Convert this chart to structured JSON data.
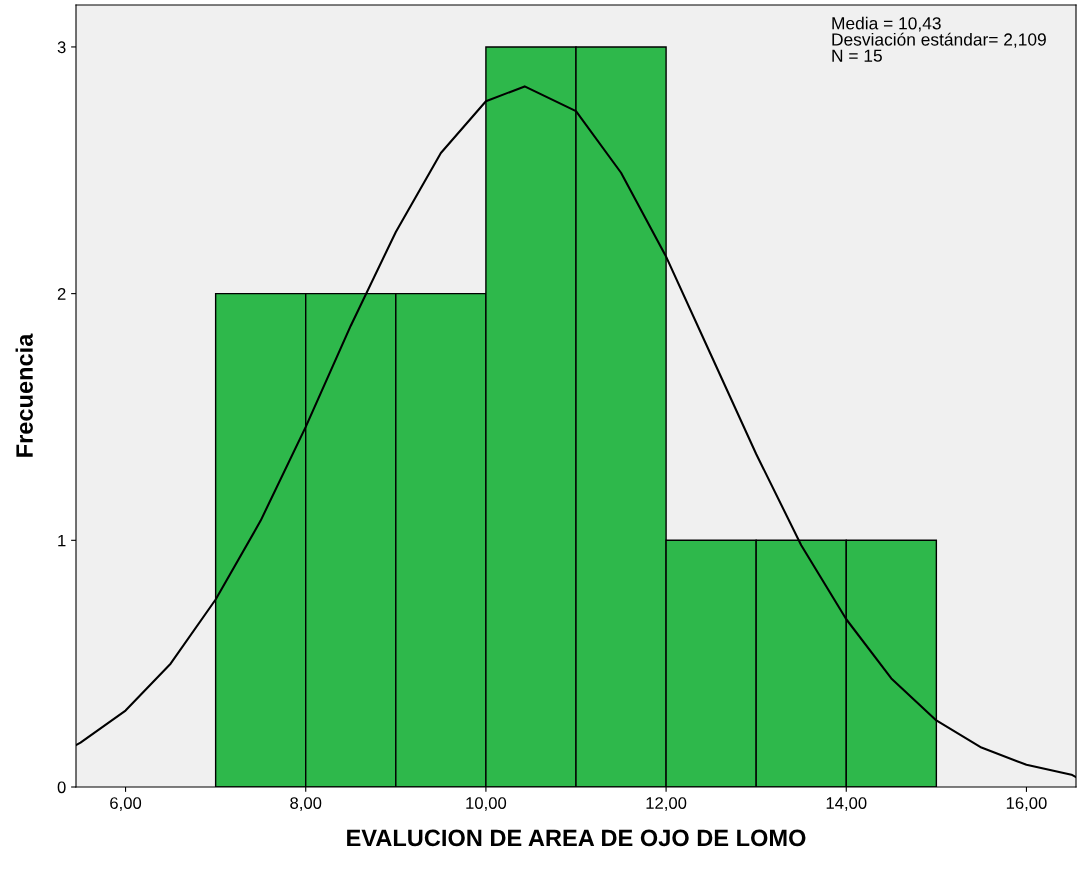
{
  "chart_data": {
    "type": "histogram",
    "xlabel": "EVALUCION DE AREA DE OJO DE LOMO",
    "ylabel": "Frecuencia",
    "bins": [
      7,
      8,
      9,
      10,
      11,
      12,
      13,
      14,
      15
    ],
    "values": [
      2,
      2,
      2,
      3,
      3,
      1,
      1,
      1
    ],
    "color": "#2eb84b",
    "series": [
      {
        "type": "line",
        "color": "#000000",
        "x": [
          5.45,
          5.5,
          6,
          6.5,
          7,
          7.5,
          8,
          8.5,
          9,
          9.5,
          10,
          10.43,
          11,
          11.5,
          12,
          12.5,
          13,
          13.5,
          14,
          14.5,
          15,
          15.5,
          16,
          16.5,
          16.55
        ],
        "values": [
          0.17,
          0.18,
          0.31,
          0.5,
          0.76,
          1.08,
          1.46,
          1.87,
          2.25,
          2.57,
          2.78,
          2.84,
          2.74,
          2.49,
          2.15,
          1.75,
          1.35,
          0.98,
          0.68,
          0.44,
          0.27,
          0.16,
          0.09,
          0.05,
          0.04
        ]
      }
    ],
    "annotations": [
      "Media = 10,43\nDesviación estándar= 2,109\nN = 15"
    ],
    "xlim": [
      5.45,
      16.55
    ],
    "ylim": [
      0,
      3.17
    ],
    "xticks": [
      {
        "value": 6,
        "label": "6,00"
      },
      {
        "value": 8,
        "label": "8,00"
      },
      {
        "value": 10,
        "label": "10,00"
      },
      {
        "value": 12,
        "label": "12,00"
      },
      {
        "value": 14,
        "label": "14,00"
      },
      {
        "value": 16,
        "label": "16,00"
      }
    ],
    "yticks": [
      0,
      1,
      2,
      3
    ],
    "grid": false
  }
}
